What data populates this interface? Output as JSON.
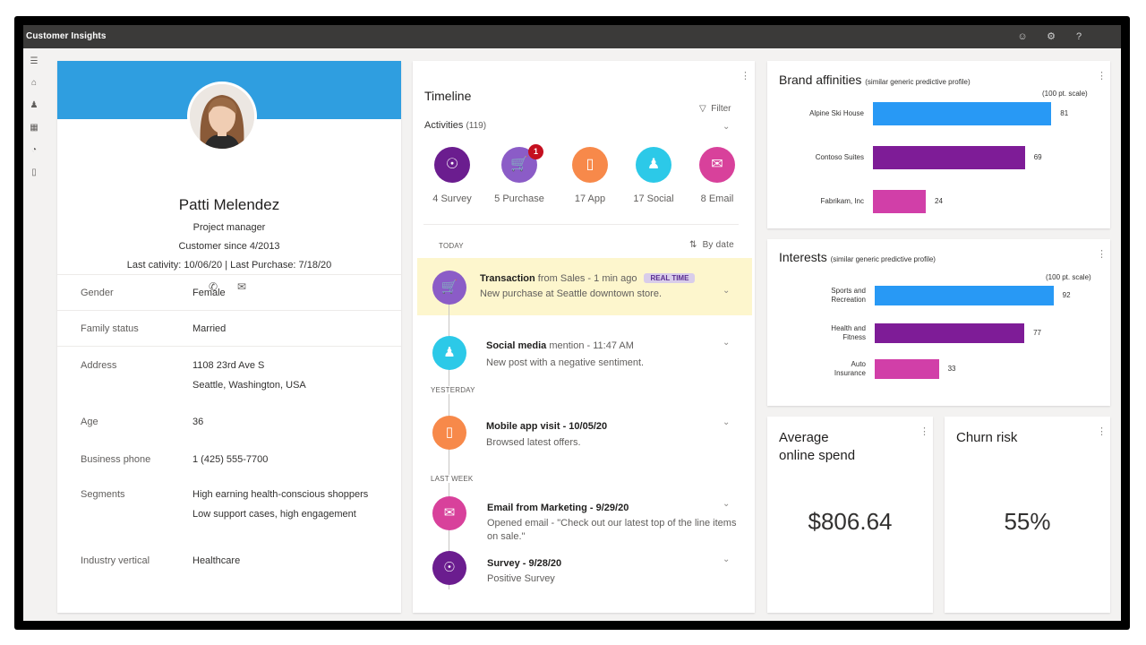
{
  "app": {
    "title": "Customer Insights",
    "top_icons": [
      "smiley-icon",
      "settings-icon",
      "help-icon"
    ]
  },
  "nav": {
    "icons": [
      "menu-icon",
      "home-icon",
      "contacts-icon",
      "segments-icon",
      "insights-icon",
      "reports-icon"
    ]
  },
  "profile": {
    "name": "Patti Melendez",
    "role": "Project manager",
    "customer_since": "Customer since 4/2013",
    "last_activity": "Last cativity: 10/06/20 | Last Purchase: 7/18/20",
    "banner_color": "#2f9ee0",
    "fields": {
      "gender": {
        "label": "Gender",
        "value": "Female"
      },
      "family": {
        "label": "Family status",
        "value": "Married"
      },
      "address": {
        "label": "Address",
        "line1": "1108 23rd Ave S",
        "line2": "Seattle, Washington, USA"
      },
      "age": {
        "label": "Age",
        "value": "36"
      },
      "phone": {
        "label": "Business phone",
        "value": "1 (425) 555-7700"
      },
      "segments": {
        "label": "Segments",
        "line1": "High earning health-conscious shoppers",
        "line2": "Low support cases, high engagement"
      },
      "industry": {
        "label": "Industry vertical",
        "value": "Healthcare"
      }
    }
  },
  "timeline": {
    "title": "Timeline",
    "filter_label": "Filter",
    "activities_label": "Activities",
    "activities_count": "(119)",
    "categories": [
      {
        "label": "4 Survey",
        "icon": "globe-icon",
        "color": "#6b1d8f"
      },
      {
        "label": "5 Purchase",
        "icon": "cart-icon",
        "color": "#8b5cc7",
        "badge": "1"
      },
      {
        "label": "17 App",
        "icon": "phone-icon",
        "color": "#f7894a"
      },
      {
        "label": "17 Social",
        "icon": "people-icon",
        "color": "#2cc9e8"
      },
      {
        "label": "8 Email",
        "icon": "mail-icon",
        "color": "#d8419b"
      }
    ],
    "today_label": "TODAY",
    "sort_label": "By date",
    "yesterday_label": "YESTERDAY",
    "last_week_label": "LAST WEEK",
    "events": [
      {
        "title": "Transaction",
        "source": " from Sales - 1 min ago",
        "badge": "REAL TIME",
        "desc": "New purchase at Seattle downtown store.",
        "icon": "cart-icon",
        "color": "#8b5cc7"
      },
      {
        "title": "Social media",
        "source": " mention - 11:47 AM",
        "desc": "New post with a negative sentiment.",
        "icon": "people-icon",
        "color": "#2cc9e8"
      },
      {
        "title": "Mobile app visit - 10/05/20",
        "source": "",
        "desc": "Browsed latest offers.",
        "icon": "phone-icon",
        "color": "#f7894a"
      },
      {
        "title": "Email from Marketing - 9/29/20",
        "source": "",
        "desc": "Opened email - \"Check out our latest top of the line items on sale.\"",
        "icon": "mail-icon",
        "color": "#d8419b"
      },
      {
        "title": "Survey - 9/28/20",
        "source": "",
        "desc": "Positive Survey",
        "icon": "globe-icon",
        "color": "#6b1d8f"
      }
    ]
  },
  "brand_affinities": {
    "title": "Brand affinities",
    "subtitle": "(similar generic predictive profile)",
    "scale": "(100 pt. scale)"
  },
  "interests": {
    "title": "Interests",
    "subtitle": "(similar generic predictive profile)",
    "scale": "(100 pt. scale)"
  },
  "chart_data": [
    {
      "type": "bar",
      "orientation": "horizontal",
      "title": "Brand affinities",
      "categories": [
        "Alpine Ski House",
        "Contoso Suites",
        "Fabrikam, Inc"
      ],
      "values": [
        81,
        69,
        24
      ],
      "colors": [
        "#2899f5",
        "#7e1c97",
        "#d13fa8"
      ],
      "xlim": [
        0,
        100
      ],
      "grid": false
    },
    {
      "type": "bar",
      "orientation": "horizontal",
      "title": "Interests",
      "categories": [
        "Sports and Recreation",
        "Health and Fitness",
        "Auto Insurance"
      ],
      "values": [
        92,
        77,
        33
      ],
      "colors": [
        "#2899f5",
        "#7e1c97",
        "#d13fa8"
      ],
      "xlim": [
        0,
        100
      ],
      "grid": false
    }
  ],
  "kpis": {
    "spend": {
      "title_line1": "Average",
      "title_line2": "online spend",
      "value": "$806.64"
    },
    "churn": {
      "title": "Churn risk",
      "value": "55%"
    }
  }
}
